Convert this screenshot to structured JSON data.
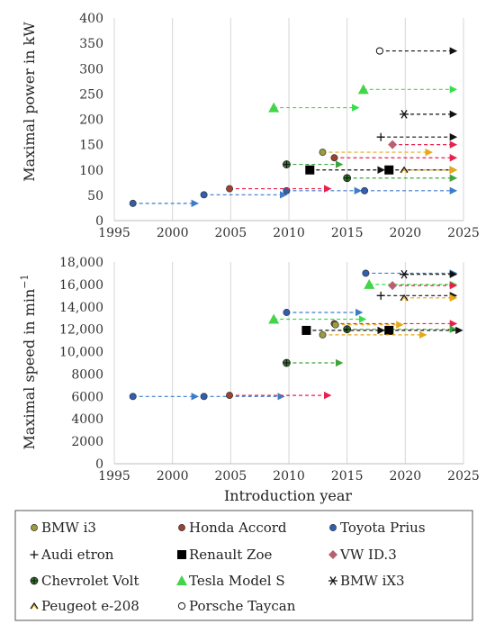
{
  "chart_data": [
    {
      "type": "scatter",
      "ylabel": "Maximal power in kW",
      "xlim": [
        1995,
        2025
      ],
      "ylim": [
        0,
        400
      ],
      "x_ticks": [
        "1995",
        "2000",
        "2005",
        "2010",
        "2015",
        "2020",
        "2025"
      ],
      "y_ticks": [
        "0",
        "50",
        "100",
        "150",
        "200",
        "250",
        "300",
        "350",
        "400"
      ],
      "grid": "vertical",
      "series": [
        {
          "name": "Toyota Prius",
          "color": "#3d7cc9",
          "marker": "circle",
          "segments": [
            {
              "x": [
                1996.6,
                2002.2
              ],
              "y": 34
            },
            {
              "x": [
                2002.7,
                2009.8
              ],
              "y": 51
            },
            {
              "x": [
                2009.8,
                2016.2
              ],
              "y": 59
            },
            {
              "x": [
                2016.5,
                2024.4
              ],
              "y": 59
            }
          ]
        },
        {
          "name": "Honda Accord",
          "color": "#e8204e",
          "marker": "circle",
          "segments": [
            {
              "x": [
                2004.9,
                2013.6
              ],
              "y": 63
            },
            {
              "x": [
                2013.9,
                2024.4
              ],
              "y": 124
            }
          ]
        },
        {
          "name": "Chevrolet Volt",
          "color": "#3fa53b",
          "marker": "plus-circle",
          "segments": [
            {
              "x": [
                2009.8,
                2014.6
              ],
              "y": 111
            },
            {
              "x": [
                2015.0,
                2024.4
              ],
              "y": 84
            }
          ]
        },
        {
          "name": "Renault Zoe",
          "color": "#000000",
          "marker": "square",
          "segments": [
            {
              "x": [
                2011.8,
                2018.2
              ],
              "y": 100
            },
            {
              "x": [
                2018.6,
                2024.4
              ],
              "y": 100
            }
          ]
        },
        {
          "name": "BMW i3",
          "color": "#e6a817",
          "marker": "circle",
          "segments": [
            {
              "x": [
                2012.9,
                2022.3
              ],
              "y": 135
            }
          ]
        },
        {
          "name": "Tesla Model S",
          "color": "#33e04a",
          "marker": "triangle",
          "segments": [
            {
              "x": [
                2008.7,
                2016.0
              ],
              "y": 223
            },
            {
              "x": [
                2016.4,
                2024.4
              ],
              "y": 259
            }
          ]
        },
        {
          "name": "Porsche Taycan",
          "color": "#111111",
          "marker": "open-circle",
          "segments": [
            {
              "x": [
                2017.8,
                2024.4
              ],
              "y": 335
            }
          ]
        },
        {
          "name": "BMW iX3",
          "color": "#111111",
          "marker": "asterisk",
          "segments": [
            {
              "x": [
                2019.9,
                2024.4
              ],
              "y": 210
            }
          ]
        },
        {
          "name": "Audi etron",
          "color": "#111111",
          "marker": "plus",
          "segments": [
            {
              "x": [
                2017.9,
                2024.4
              ],
              "y": 165
            }
          ]
        },
        {
          "name": "VW ID.3",
          "color": "#e8204e",
          "marker": "diamond",
          "segments": [
            {
              "x": [
                2018.9,
                2024.4
              ],
              "y": 150
            }
          ]
        },
        {
          "name": "Peugeot e-208",
          "color": "#e6a817",
          "marker": "caret",
          "segments": [
            {
              "x": [
                2019.9,
                2024.4
              ],
              "y": 100
            }
          ]
        }
      ]
    },
    {
      "type": "scatter",
      "ylabel": "Maximal speed in min",
      "ylabel_superscript": "−1",
      "xlabel": "Introduction year",
      "xlim": [
        1995,
        2025
      ],
      "ylim": [
        0,
        18000
      ],
      "x_ticks": [
        "1995",
        "2000",
        "2005",
        "2010",
        "2015",
        "2020",
        "2025"
      ],
      "y_ticks": [
        "0",
        "2000",
        "4000",
        "6000",
        "8000",
        "10,000",
        "12,000",
        "14,000",
        "16,000",
        "18,000"
      ],
      "grid": "vertical",
      "series": [
        {
          "name": "Toyota Prius",
          "color": "#3d7cc9",
          "marker": "circle",
          "segments": [
            {
              "x": [
                1996.6,
                2002.2
              ],
              "y": 6000
            },
            {
              "x": [
                2002.7,
                2009.6
              ],
              "y": 6000
            },
            {
              "x": [
                2009.8,
                2016.3
              ],
              "y": 13500
            },
            {
              "x": [
                2016.6,
                2024.4
              ],
              "y": 17000
            }
          ]
        },
        {
          "name": "Honda Accord",
          "color": "#e8204e",
          "marker": "circle",
          "segments": [
            {
              "x": [
                2004.9,
                2013.6
              ],
              "y": 6100
            },
            {
              "x": [
                2013.9,
                2024.4
              ],
              "y": 12500
            }
          ]
        },
        {
          "name": "Chevrolet Volt",
          "color": "#3fa53b",
          "marker": "plus-circle",
          "segments": [
            {
              "x": [
                2009.8,
                2014.6
              ],
              "y": 9000
            },
            {
              "x": [
                2015.0,
                2024.4
              ],
              "y": 12000
            }
          ]
        },
        {
          "name": "Renault Zoe",
          "color": "#000000",
          "marker": "square",
          "segments": [
            {
              "x": [
                2011.5,
                2018.2
              ],
              "y": 11900
            },
            {
              "x": [
                2018.6,
                2024.9
              ],
              "y": 11900
            }
          ]
        },
        {
          "name": "BMW i3",
          "color": "#e6a817",
          "marker": "circle",
          "segments": [
            {
              "x": [
                2012.9,
                2021.8
              ],
              "y": 11500
            },
            {
              "x": [
                2014.0,
                2019.8
              ],
              "y": 12400
            }
          ]
        },
        {
          "name": "Tesla Model S",
          "color": "#33e04a",
          "marker": "triangle",
          "segments": [
            {
              "x": [
                2008.7,
                2016.6
              ],
              "y": 12900
            },
            {
              "x": [
                2016.9,
                2024.4
              ],
              "y": 16000
            }
          ]
        },
        {
          "name": "BMW iX3",
          "color": "#111111",
          "marker": "asterisk",
          "segments": [
            {
              "x": [
                2019.9,
                2024.4
              ],
              "y": 16900
            }
          ]
        },
        {
          "name": "Audi etron",
          "color": "#111111",
          "marker": "plus",
          "segments": [
            {
              "x": [
                2017.9,
                2024.4
              ],
              "y": 15000
            }
          ]
        },
        {
          "name": "VW ID.3",
          "color": "#e8204e",
          "marker": "diamond",
          "segments": [
            {
              "x": [
                2018.9,
                2024.4
              ],
              "y": 15900
            }
          ]
        },
        {
          "name": "Peugeot e-208",
          "color": "#e6a817",
          "marker": "caret",
          "segments": [
            {
              "x": [
                2019.9,
                2024.4
              ],
              "y": 14800
            }
          ]
        }
      ]
    }
  ],
  "legend": {
    "placement": "bottom",
    "items": [
      {
        "label": "BMW i3",
        "marker": "circle",
        "color": "#e6a817",
        "fill": "#9c9c3a"
      },
      {
        "label": "Honda Accord",
        "marker": "circle",
        "color": "#e8204e",
        "fill": "#a0402e"
      },
      {
        "label": "Toyota Prius",
        "marker": "circle",
        "color": "#3d7cc9",
        "fill": "#2f5fb0"
      },
      {
        "label": "Audi etron",
        "marker": "plus",
        "color": "#111111",
        "fill": "#111111"
      },
      {
        "label": "Renault Zoe",
        "marker": "square",
        "color": "#000000",
        "fill": "#000000"
      },
      {
        "label": "VW ID.3",
        "marker": "diamond",
        "color": "#c86a7a",
        "fill": "#b86070"
      },
      {
        "label": "Chevrolet Volt",
        "marker": "plus-circle",
        "color": "#3fa53b",
        "fill": "#2e7a2a"
      },
      {
        "label": "Tesla Model S",
        "marker": "triangle",
        "color": "#33e04a",
        "fill": "#44d44a"
      },
      {
        "label": "BMW iX3",
        "marker": "asterisk",
        "color": "#111111",
        "fill": "#111111"
      },
      {
        "label": "Peugeot e-208",
        "marker": "caret",
        "color": "#e6a817",
        "fill": "#e6a817"
      },
      {
        "label": "Porsche Taycan",
        "marker": "open-circle",
        "color": "#111111",
        "fill": "#ffffff"
      }
    ]
  }
}
